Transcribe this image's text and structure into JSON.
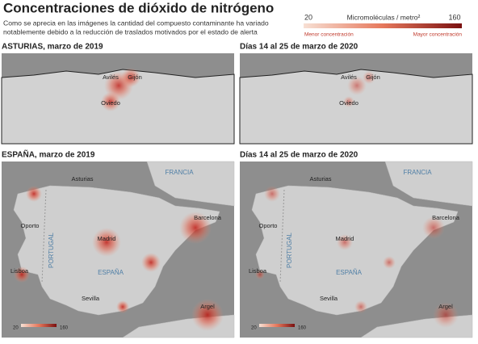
{
  "header": {
    "title": "Concentraciones de dióxido de nitrógeno",
    "subtitle_lines": [
      "Como se aprecia en las imágenes la cantidad del compuesto contaminante ha variado",
      "notablemente debido a la reducción de traslados motivados por el estado de alerta"
    ]
  },
  "legend": {
    "min": 20,
    "unit": "Micromoléculas / metro²",
    "max": 160,
    "low_label": "Menor concentración",
    "high_label": "Mayor concentración"
  },
  "panels": [
    {
      "title": "ASTURIAS, marzo de 2019",
      "places": [
        "Avilés",
        "Gijón",
        "Oviedo"
      ]
    },
    {
      "title": "Días 14 al 25 de marzo de 2020",
      "places": [
        "Avilés",
        "Gijón",
        "Oviedo"
      ]
    },
    {
      "title": "ESPAÑA, marzo de 2019",
      "places": [
        "Asturias",
        "FRANCIA",
        "Oporto",
        "Barcelona",
        "Madrid",
        "PORTUGAL",
        "Lisboa",
        "ESPAÑA",
        "Sevilla",
        "Argel"
      ],
      "scale": {
        "min": 20,
        "max": 160
      }
    },
    {
      "title": "Días 14 al 25 de marzo de 2020",
      "places": [
        "Asturias",
        "FRANCIA",
        "Oporto",
        "Barcelona",
        "Madrid",
        "PORTUGAL",
        "Lisboa",
        "ESPAÑA",
        "Sevilla",
        "Argel"
      ],
      "scale": {
        "min": 20,
        "max": 160
      }
    }
  ]
}
